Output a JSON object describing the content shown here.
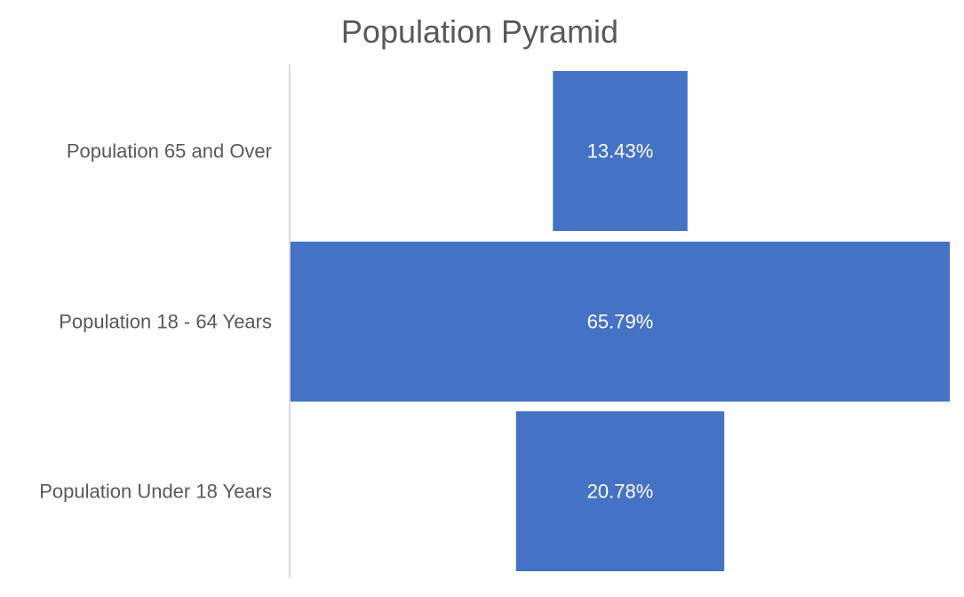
{
  "chart_data": {
    "type": "bar",
    "orientation": "horizontal",
    "layout": "centered-funnel",
    "title": "Population Pyramid",
    "categories": [
      "Population 65 and Over",
      "Population 18 - 64 Years",
      "Population Under 18 Years"
    ],
    "values": [
      13.43,
      65.79,
      20.78
    ],
    "data_labels": [
      "13.43%",
      "65.79%",
      "20.78%"
    ],
    "unit": "%",
    "legend": "none",
    "grid": false,
    "colors": {
      "bar": "#4472C4",
      "data_label": "#FFFFFF",
      "title": "#595959",
      "category_label": "#595959",
      "axis_line": "#D9D9D9"
    }
  }
}
